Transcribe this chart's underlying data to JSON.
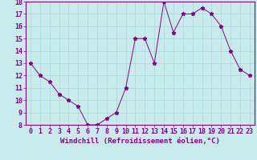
{
  "x": [
    0,
    1,
    2,
    3,
    4,
    5,
    6,
    7,
    8,
    9,
    10,
    11,
    12,
    13,
    14,
    15,
    16,
    17,
    18,
    19,
    20,
    21,
    22,
    23
  ],
  "y": [
    13,
    12,
    11.5,
    10.5,
    10,
    9.5,
    8,
    8,
    8.5,
    9,
    11,
    15,
    15,
    13,
    18,
    15.5,
    17,
    17,
    17.5,
    17,
    16,
    14,
    12.5,
    12
  ],
  "line_color": "#880088",
  "marker": "*",
  "bg_color": "#c8ecec",
  "grid_color": "#aad8d8",
  "bottom_bar_color": "#880088",
  "xlabel": "Windchill (Refroidissement éolien,°C)",
  "xlabel_color": "#880088",
  "tick_color": "#880088",
  "ylim": [
    8,
    18
  ],
  "xlim": [
    -0.5,
    23.5
  ],
  "yticks": [
    8,
    9,
    10,
    11,
    12,
    13,
    14,
    15,
    16,
    17,
    18
  ],
  "xticks": [
    0,
    1,
    2,
    3,
    4,
    5,
    6,
    7,
    8,
    9,
    10,
    11,
    12,
    13,
    14,
    15,
    16,
    17,
    18,
    19,
    20,
    21,
    22,
    23
  ],
  "font_size_label": 6.5,
  "font_size_tick": 6
}
